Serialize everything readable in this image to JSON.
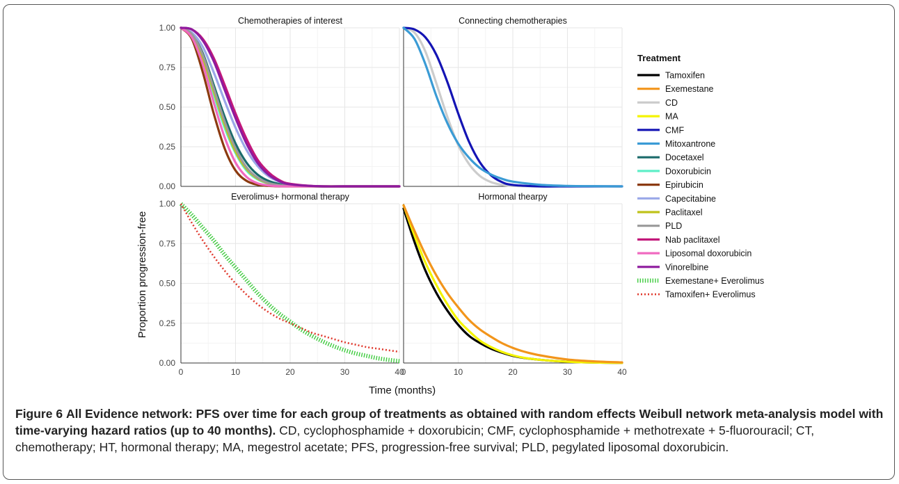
{
  "figure": {
    "caption_label": "Figure 6",
    "caption_title": "All Evidence network: PFS over time for each group of treatments as obtained with random effects Weibull network meta-analysis model with time-varying hazard ratios (up to 40 months).",
    "caption_body": "CD, cyclophosphamide + doxorubicin; CMF, cyclophosphamide + methotrexate + 5-fluorouracil; CT, chemotherapy; HT, hormonal therapy; MA, megestrol acetate; PFS, progression-free survival; PLD, pegylated liposomal doxorubicin."
  },
  "chart_data": {
    "type": "line",
    "xlabel": "Time (months)",
    "ylabel": "Proportion progression-free",
    "xlim": [
      0,
      40
    ],
    "ylim": [
      0,
      1
    ],
    "x_ticks": [
      0,
      10,
      20,
      30,
      40
    ],
    "y_ticks": [
      "0.00",
      "0.25",
      "0.50",
      "0.75",
      "1.00"
    ],
    "grid": true,
    "legend_title": "Treatment",
    "legend_position": "right",
    "legend": [
      {
        "name": "Tamoxifen",
        "color": "#000000",
        "style": "solid"
      },
      {
        "name": "Exemestane",
        "color": "#F2951B",
        "style": "solid"
      },
      {
        "name": "CD",
        "color": "#CCCCCC",
        "style": "solid"
      },
      {
        "name": "MA",
        "color": "#F4F400",
        "style": "solid"
      },
      {
        "name": "CMF",
        "color": "#1414B4",
        "style": "solid"
      },
      {
        "name": "Mitoxantrone",
        "color": "#3A9BD5",
        "style": "solid"
      },
      {
        "name": "Docetaxel",
        "color": "#1B6B6B",
        "style": "solid"
      },
      {
        "name": "Doxorubicin",
        "color": "#5FEFC8",
        "style": "solid"
      },
      {
        "name": "Epirubicin",
        "color": "#8B3A0F",
        "style": "solid"
      },
      {
        "name": "Capecitabine",
        "color": "#9AA8E8",
        "style": "solid"
      },
      {
        "name": "Paclitaxel",
        "color": "#BFC21A",
        "style": "solid"
      },
      {
        "name": "PLD",
        "color": "#9A9A9A",
        "style": "solid"
      },
      {
        "name": "Nab paclitaxel",
        "color": "#C2187A",
        "style": "solid"
      },
      {
        "name": "Liposomal doxorubicin",
        "color": "#F06AC0",
        "style": "solid"
      },
      {
        "name": "Vinorelbine",
        "color": "#8E1A9E",
        "style": "solid"
      },
      {
        "name": "Exemestane+ Everolimus",
        "color": "#3DCB3D",
        "style": "hatched"
      },
      {
        "name": "Tamoxifen+ Everolimus",
        "color": "#E03A2E",
        "style": "dotted"
      }
    ],
    "panels": [
      {
        "title": "Chemotherapies of interest",
        "series": [
          {
            "name": "Docetaxel",
            "x": [
              0,
              2,
              4,
              6,
              8,
              10,
              12,
              14,
              16,
              18,
              20,
              25,
              30,
              35,
              40
            ],
            "y": [
              1.0,
              0.96,
              0.84,
              0.64,
              0.44,
              0.27,
              0.15,
              0.075,
              0.035,
              0.015,
              0.006,
              0.0,
              0.0,
              0.0,
              0.0
            ]
          },
          {
            "name": "Doxorubicin",
            "x": [
              0,
              2,
              4,
              6,
              8,
              10,
              12,
              14,
              16,
              18,
              20,
              25,
              30,
              35,
              40
            ],
            "y": [
              1.0,
              0.95,
              0.8,
              0.58,
              0.37,
              0.21,
              0.1,
              0.045,
              0.018,
              0.006,
              0.002,
              0.0,
              0.0,
              0.0,
              0.0
            ]
          },
          {
            "name": "Epirubicin",
            "x": [
              0,
              2,
              4,
              6,
              8,
              10,
              12,
              14,
              16,
              18,
              20,
              25,
              30,
              35,
              40
            ],
            "y": [
              1.0,
              0.93,
              0.72,
              0.46,
              0.24,
              0.1,
              0.035,
              0.01,
              0.003,
              0.0,
              0.0,
              0.0,
              0.0,
              0.0,
              0.0
            ]
          },
          {
            "name": "Capecitabine",
            "x": [
              0,
              2,
              4,
              6,
              8,
              10,
              12,
              14,
              16,
              18,
              20,
              25,
              30,
              35,
              40
            ],
            "y": [
              1.0,
              0.97,
              0.88,
              0.72,
              0.54,
              0.37,
              0.23,
              0.13,
              0.065,
              0.03,
              0.013,
              0.001,
              0.0,
              0.0,
              0.0
            ]
          },
          {
            "name": "Paclitaxel",
            "x": [
              0,
              2,
              4,
              6,
              8,
              10,
              12,
              14,
              16,
              18,
              20,
              25,
              30,
              35,
              40
            ],
            "y": [
              1.0,
              0.95,
              0.81,
              0.6,
              0.39,
              0.22,
              0.11,
              0.05,
              0.02,
              0.007,
              0.002,
              0.0,
              0.0,
              0.0,
              0.0
            ]
          },
          {
            "name": "PLD",
            "x": [
              0,
              2,
              4,
              6,
              8,
              10,
              12,
              14,
              16,
              18,
              20,
              25,
              30,
              35,
              40
            ],
            "y": [
              1.0,
              0.96,
              0.83,
              0.62,
              0.41,
              0.24,
              0.12,
              0.055,
              0.022,
              0.008,
              0.003,
              0.0,
              0.0,
              0.0,
              0.0
            ]
          },
          {
            "name": "Nab paclitaxel",
            "x": [
              0,
              2,
              4,
              6,
              8,
              10,
              12,
              14,
              16,
              18,
              20,
              25,
              30,
              35,
              40
            ],
            "y": [
              1.0,
              0.99,
              0.93,
              0.81,
              0.64,
              0.46,
              0.3,
              0.17,
              0.09,
              0.04,
              0.016,
              0.001,
              0.0,
              0.0,
              0.0
            ]
          },
          {
            "name": "Liposomal doxorubicin",
            "x": [
              0,
              2,
              4,
              6,
              8,
              10,
              12,
              14,
              16,
              18,
              20,
              25,
              30,
              35,
              40
            ],
            "y": [
              1.0,
              0.94,
              0.77,
              0.53,
              0.31,
              0.15,
              0.06,
              0.02,
              0.006,
              0.001,
              0.0,
              0.0,
              0.0,
              0.0,
              0.0
            ]
          },
          {
            "name": "Vinorelbine",
            "x": [
              0,
              2,
              4,
              6,
              8,
              10,
              12,
              14,
              16,
              18,
              20,
              25,
              30,
              35,
              40
            ],
            "y": [
              1.0,
              0.99,
              0.92,
              0.79,
              0.61,
              0.43,
              0.27,
              0.15,
              0.075,
              0.033,
              0.013,
              0.001,
              0.0,
              0.0,
              0.0
            ]
          }
        ]
      },
      {
        "title": "Connecting chemotherapies",
        "series": [
          {
            "name": "CD",
            "x": [
              0,
              2,
              4,
              6,
              8,
              10,
              12,
              14,
              16,
              18,
              20,
              25,
              30,
              35,
              40
            ],
            "y": [
              1.0,
              0.97,
              0.85,
              0.65,
              0.44,
              0.26,
              0.14,
              0.065,
              0.027,
              0.01,
              0.003,
              0.0,
              0.0,
              0.0,
              0.0
            ]
          },
          {
            "name": "CMF",
            "x": [
              0,
              2,
              4,
              6,
              8,
              10,
              12,
              14,
              16,
              18,
              20,
              25,
              30,
              35,
              40
            ],
            "y": [
              1.0,
              0.99,
              0.94,
              0.83,
              0.66,
              0.46,
              0.28,
              0.15,
              0.07,
              0.027,
              0.009,
              0.0,
              0.0,
              0.0,
              0.0
            ]
          },
          {
            "name": "Mitoxantrone",
            "x": [
              0,
              2,
              4,
              6,
              8,
              10,
              12,
              14,
              16,
              18,
              20,
              25,
              30,
              35,
              40
            ],
            "y": [
              1.0,
              0.93,
              0.77,
              0.57,
              0.4,
              0.27,
              0.18,
              0.115,
              0.075,
              0.048,
              0.03,
              0.01,
              0.003,
              0.001,
              0.0
            ]
          }
        ]
      },
      {
        "title": "Everolimus+ hormonal therapy",
        "series": [
          {
            "name": "Exemestane+ Everolimus",
            "x": [
              0,
              2,
              4,
              6,
              8,
              10,
              12,
              14,
              16,
              18,
              20,
              22,
              24,
              26,
              28,
              30,
              32,
              34,
              36,
              38,
              40
            ],
            "y": [
              1.0,
              0.93,
              0.85,
              0.77,
              0.68,
              0.6,
              0.52,
              0.44,
              0.37,
              0.31,
              0.26,
              0.21,
              0.17,
              0.135,
              0.105,
              0.08,
              0.06,
              0.045,
              0.03,
              0.02,
              0.012
            ]
          },
          {
            "name": "Tamoxifen+ Everolimus",
            "x": [
              0,
              2,
              4,
              6,
              8,
              10,
              12,
              14,
              16,
              18,
              20,
              22,
              24,
              26,
              28,
              30,
              32,
              34,
              36,
              38,
              40
            ],
            "y": [
              1.0,
              0.88,
              0.77,
              0.67,
              0.58,
              0.5,
              0.43,
              0.37,
              0.32,
              0.28,
              0.25,
              0.22,
              0.19,
              0.17,
              0.15,
              0.13,
              0.115,
              0.1,
              0.09,
              0.08,
              0.07
            ]
          }
        ]
      },
      {
        "title": "Hormonal thearpy",
        "series": [
          {
            "name": "Tamoxifen",
            "x": [
              0,
              2,
              4,
              6,
              8,
              10,
              12,
              14,
              16,
              18,
              20,
              22,
              25,
              30,
              35,
              40
            ],
            "y": [
              0.97,
              0.76,
              0.58,
              0.44,
              0.33,
              0.24,
              0.17,
              0.125,
              0.09,
              0.065,
              0.045,
              0.032,
              0.02,
              0.008,
              0.003,
              0.001
            ]
          },
          {
            "name": "MA",
            "x": [
              0,
              2,
              4,
              6,
              8,
              10,
              12,
              14,
              16,
              18,
              20,
              22,
              25,
              30,
              35,
              40
            ],
            "y": [
              0.99,
              0.8,
              0.63,
              0.49,
              0.37,
              0.27,
              0.2,
              0.14,
              0.1,
              0.07,
              0.048,
              0.033,
              0.02,
              0.008,
              0.003,
              0.001
            ]
          },
          {
            "name": "Exemestane",
            "x": [
              0,
              2,
              4,
              6,
              8,
              10,
              12,
              14,
              16,
              18,
              20,
              22,
              25,
              30,
              35,
              40
            ],
            "y": [
              0.99,
              0.83,
              0.68,
              0.55,
              0.44,
              0.35,
              0.27,
              0.21,
              0.165,
              0.125,
              0.095,
              0.072,
              0.048,
              0.022,
              0.01,
              0.004
            ]
          }
        ]
      }
    ]
  }
}
